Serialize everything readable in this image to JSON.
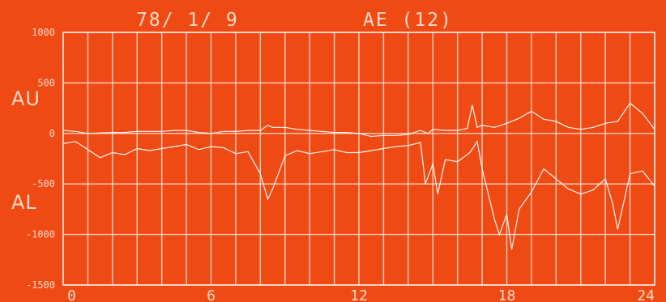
{
  "chart_data": {
    "type": "line",
    "title_date": "78/ 1/ 9",
    "title_index": "AE (12)",
    "xlim": [
      0,
      24
    ],
    "ylim": [
      -1500,
      1000
    ],
    "x_ticks": [
      0,
      6,
      12,
      18,
      24
    ],
    "y_ticks": [
      1000,
      500,
      0,
      -500,
      -1000,
      -1500
    ],
    "grid": true,
    "series": [
      {
        "name": "AU",
        "points": [
          [
            0,
            30
          ],
          [
            0.5,
            20
          ],
          [
            1,
            0
          ],
          [
            1.5,
            5
          ],
          [
            2,
            10
          ],
          [
            2.5,
            10
          ],
          [
            3,
            20
          ],
          [
            3.5,
            20
          ],
          [
            4,
            20
          ],
          [
            4.5,
            30
          ],
          [
            5,
            30
          ],
          [
            5.5,
            10
          ],
          [
            6,
            0
          ],
          [
            6.5,
            20
          ],
          [
            7,
            20
          ],
          [
            7.5,
            30
          ],
          [
            8,
            30
          ],
          [
            8.3,
            80
          ],
          [
            8.5,
            60
          ],
          [
            9,
            60
          ],
          [
            9.5,
            40
          ],
          [
            10,
            30
          ],
          [
            10.5,
            20
          ],
          [
            11,
            10
          ],
          [
            11.5,
            10
          ],
          [
            12,
            0
          ],
          [
            12.5,
            -30
          ],
          [
            13,
            -20
          ],
          [
            13.5,
            -20
          ],
          [
            14,
            -10
          ],
          [
            14.5,
            30
          ],
          [
            14.8,
            0
          ],
          [
            15,
            40
          ],
          [
            15.5,
            30
          ],
          [
            16,
            30
          ],
          [
            16.4,
            50
          ],
          [
            16.6,
            280
          ],
          [
            16.8,
            60
          ],
          [
            17,
            80
          ],
          [
            17.5,
            60
          ],
          [
            18,
            100
          ],
          [
            18.5,
            150
          ],
          [
            19,
            220
          ],
          [
            19.5,
            140
          ],
          [
            20,
            120
          ],
          [
            20.5,
            60
          ],
          [
            21,
            40
          ],
          [
            21.5,
            60
          ],
          [
            22,
            100
          ],
          [
            22.5,
            120
          ],
          [
            23,
            300
          ],
          [
            23.5,
            200
          ],
          [
            24,
            40
          ]
        ]
      },
      {
        "name": "AL",
        "points": [
          [
            0,
            -100
          ],
          [
            0.5,
            -80
          ],
          [
            1,
            -160
          ],
          [
            1.5,
            -240
          ],
          [
            2,
            -190
          ],
          [
            2.5,
            -210
          ],
          [
            3,
            -150
          ],
          [
            3.5,
            -170
          ],
          [
            4,
            -150
          ],
          [
            4.5,
            -130
          ],
          [
            5,
            -110
          ],
          [
            5.5,
            -160
          ],
          [
            6,
            -130
          ],
          [
            6.5,
            -140
          ],
          [
            7,
            -200
          ],
          [
            7.5,
            -180
          ],
          [
            8,
            -400
          ],
          [
            8.3,
            -650
          ],
          [
            8.5,
            -550
          ],
          [
            9,
            -220
          ],
          [
            9.5,
            -170
          ],
          [
            10,
            -200
          ],
          [
            10.5,
            -180
          ],
          [
            11,
            -160
          ],
          [
            11.5,
            -190
          ],
          [
            12,
            -190
          ],
          [
            12.5,
            -170
          ],
          [
            13,
            -150
          ],
          [
            13.5,
            -130
          ],
          [
            14,
            -120
          ],
          [
            14.5,
            -90
          ],
          [
            14.7,
            -500
          ],
          [
            15,
            -300
          ],
          [
            15.2,
            -600
          ],
          [
            15.5,
            -260
          ],
          [
            16,
            -280
          ],
          [
            16.5,
            -190
          ],
          [
            16.8,
            -80
          ],
          [
            17,
            -350
          ],
          [
            17.3,
            -650
          ],
          [
            17.5,
            -850
          ],
          [
            17.7,
            -1000
          ],
          [
            18,
            -800
          ],
          [
            18.2,
            -1150
          ],
          [
            18.5,
            -750
          ],
          [
            19,
            -580
          ],
          [
            19.5,
            -350
          ],
          [
            20,
            -450
          ],
          [
            20.5,
            -550
          ],
          [
            21,
            -600
          ],
          [
            21.5,
            -560
          ],
          [
            22,
            -450
          ],
          [
            22.3,
            -700
          ],
          [
            22.5,
            -950
          ],
          [
            23,
            -400
          ],
          [
            23.5,
            -370
          ],
          [
            24,
            -520
          ]
        ]
      }
    ]
  }
}
